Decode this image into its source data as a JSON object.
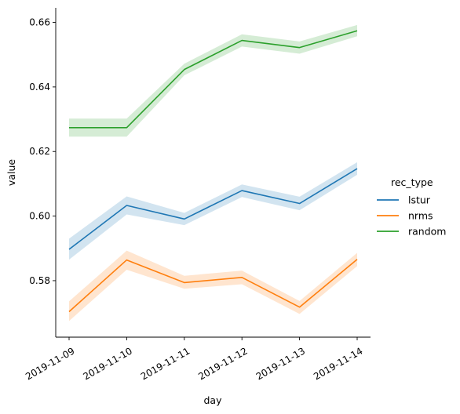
{
  "chart_data": {
    "type": "line",
    "xlabel": "day",
    "ylabel": "value",
    "categories": [
      "2019-11-09",
      "2019-11-10",
      "2019-11-11",
      "2019-11-12",
      "2019-11-13",
      "2019-11-14"
    ],
    "ylim": [
      0.5625,
      0.6645
    ],
    "yticks": [
      0.58,
      0.6,
      0.62,
      0.64,
      0.66
    ],
    "ytick_labels": [
      "0.58",
      "0.60",
      "0.62",
      "0.64",
      "0.66"
    ],
    "legend": {
      "title": "rec_type",
      "placement": "right"
    },
    "grid": false,
    "series": [
      {
        "name": "lstur",
        "color": "#1f77b4",
        "values": [
          0.5897,
          0.6033,
          0.5991,
          0.6079,
          0.6039,
          0.6147
        ],
        "lower": [
          0.5865,
          0.6005,
          0.5972,
          0.6059,
          0.6018,
          0.6128
        ],
        "upper": [
          0.593,
          0.6061,
          0.601,
          0.6098,
          0.606,
          0.6167
        ]
      },
      {
        "name": "nrms",
        "color": "#ff7f0e",
        "values": [
          0.5704,
          0.5864,
          0.5794,
          0.581,
          0.5718,
          0.5866
        ],
        "lower": [
          0.5675,
          0.5834,
          0.5775,
          0.5789,
          0.5697,
          0.5845
        ],
        "upper": [
          0.5736,
          0.5893,
          0.5815,
          0.5831,
          0.5737,
          0.5886
        ]
      },
      {
        "name": "random",
        "color": "#2ca02c",
        "values": [
          0.6274,
          0.6274,
          0.6454,
          0.6544,
          0.6522,
          0.6574
        ],
        "lower": [
          0.6246,
          0.6246,
          0.6436,
          0.6525,
          0.6503,
          0.6557
        ],
        "upper": [
          0.6302,
          0.6302,
          0.6472,
          0.6563,
          0.6541,
          0.6592
        ]
      }
    ]
  }
}
